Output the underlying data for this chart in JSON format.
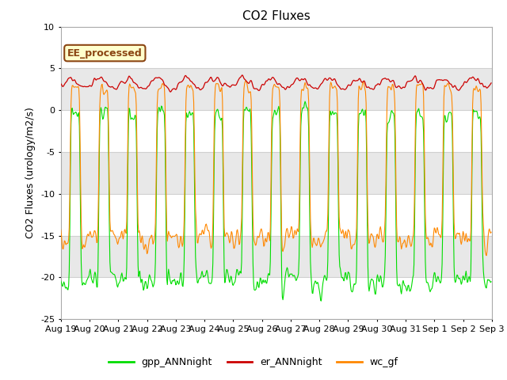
{
  "title": "CO2 Fluxes",
  "ylabel": "CO2 Fluxes (urology/m2/s)",
  "ylim": [
    -25,
    10
  ],
  "yticks": [
    -25,
    -20,
    -15,
    -10,
    -5,
    0,
    5,
    10
  ],
  "background_color": "#ffffff",
  "plot_bg_color": "#ffffff",
  "gray_band_color": "#e8e8e8",
  "grid_line_color": "#d0d0d0",
  "annotation_text": "EE_processed",
  "annotation_bg": "#ffffcc",
  "annotation_border": "#8b4513",
  "legend_entries": [
    "gpp_ANNnight",
    "er_ANNnight",
    "wc_gf"
  ],
  "line_colors": [
    "#00dd00",
    "#cc0000",
    "#ff8800"
  ],
  "n_days": 15,
  "points_per_day": 48,
  "start_day": 19,
  "start_month": "Aug"
}
